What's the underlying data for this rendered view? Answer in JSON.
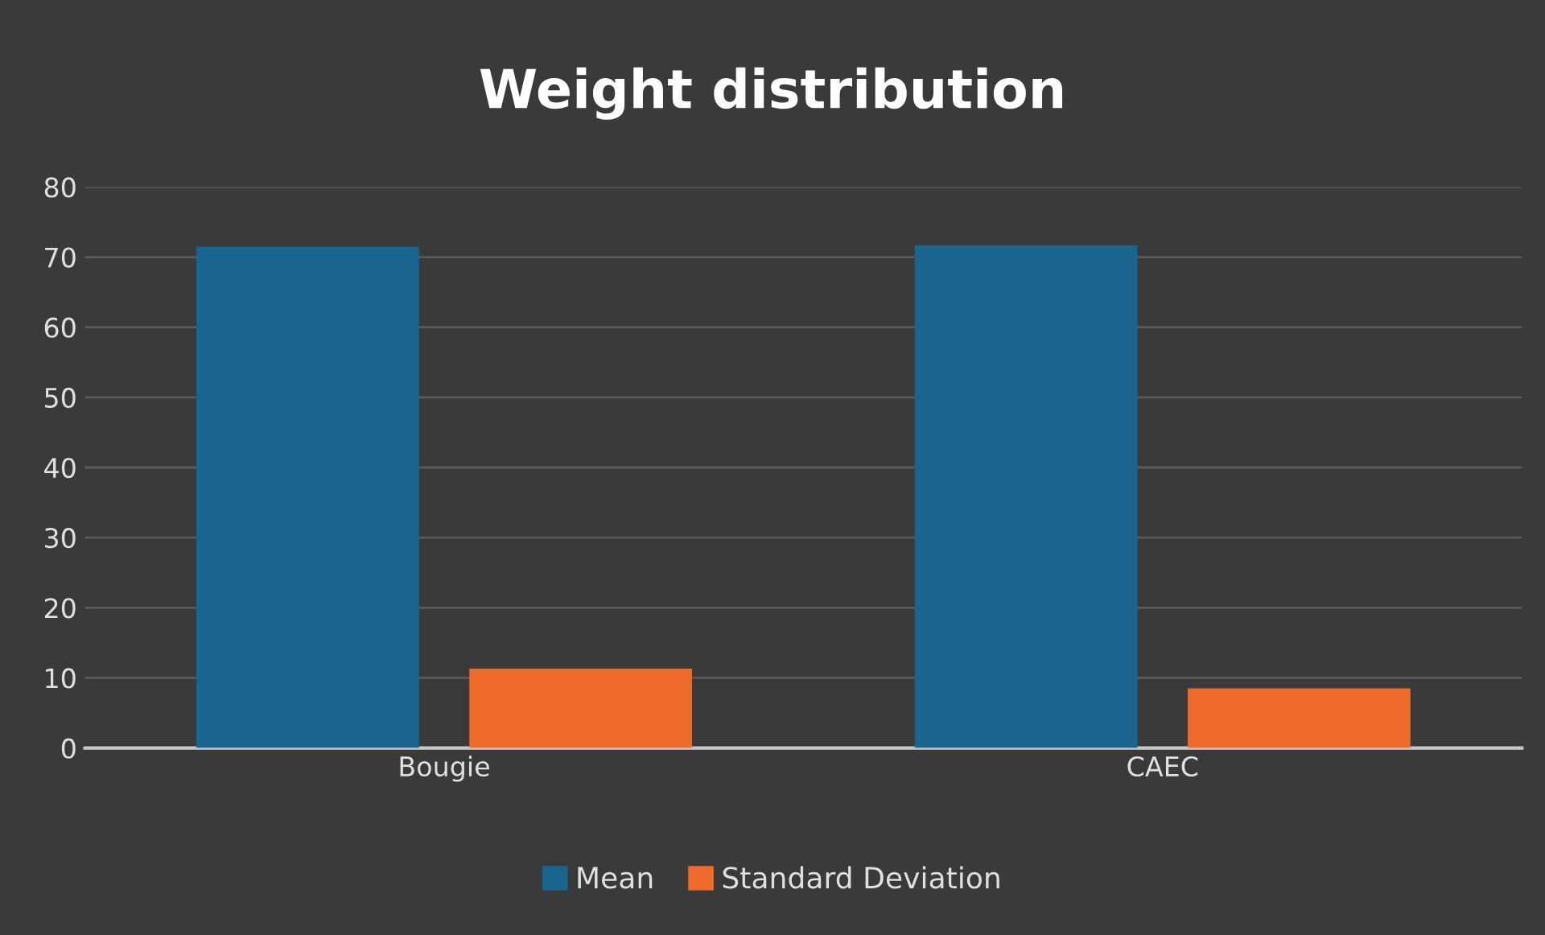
{
  "chart_data": {
    "type": "bar",
    "title": "Weight distribution",
    "categories": [
      "Bougie",
      "CAEC"
    ],
    "series": [
      {
        "name": "Mean",
        "color": "#1a6590",
        "values": [
          71.5,
          71.7
        ]
      },
      {
        "name": "Standard Deviation",
        "color": "#ee6a2a",
        "values": [
          11.3,
          8.5
        ]
      }
    ],
    "ylim": [
      0,
      80
    ],
    "yticks": [
      0,
      10,
      20,
      30,
      40,
      50,
      60,
      70,
      80
    ],
    "grid": "y",
    "legend": "bottom"
  }
}
